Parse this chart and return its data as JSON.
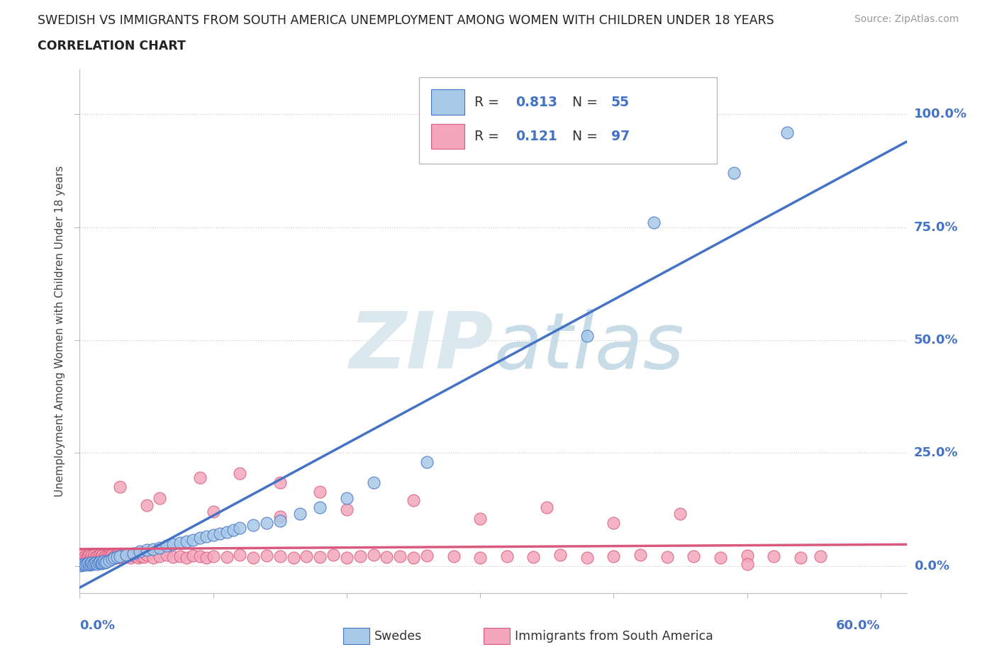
{
  "title_line1": "SWEDISH VS IMMIGRANTS FROM SOUTH AMERICA UNEMPLOYMENT AMONG WOMEN WITH CHILDREN UNDER 18 YEARS",
  "title_line2": "CORRELATION CHART",
  "source_text": "Source: ZipAtlas.com",
  "ylabel": "Unemployment Among Women with Children Under 18 years",
  "xlim": [
    0.0,
    0.62
  ],
  "ylim": [
    -0.06,
    1.1
  ],
  "ytick_vals": [
    0.0,
    0.25,
    0.5,
    0.75,
    1.0
  ],
  "ytick_labels": [
    "0.0%",
    "25.0%",
    "50.0%",
    "75.0%",
    "100.0%"
  ],
  "blue_R": "0.813",
  "blue_N": "55",
  "pink_R": "0.121",
  "pink_N": "97",
  "blue_color": "#a8c8e8",
  "blue_line_color": "#4472c4",
  "pink_color": "#f4a7bc",
  "pink_line_color": "#d9597e",
  "background_color": "#ffffff",
  "watermark_color": "#dce8f0",
  "grid_color": "#cccccc",
  "legend_label_blue": "Swedes",
  "legend_label_pink": "Immigrants from South America",
  "blue_x": [
    0.001,
    0.002,
    0.003,
    0.004,
    0.005,
    0.006,
    0.007,
    0.008,
    0.009,
    0.01,
    0.011,
    0.012,
    0.013,
    0.014,
    0.015,
    0.016,
    0.017,
    0.018,
    0.019,
    0.02,
    0.022,
    0.024,
    0.026,
    0.028,
    0.03,
    0.035,
    0.04,
    0.045,
    0.05,
    0.055,
    0.06,
    0.065,
    0.07,
    0.075,
    0.08,
    0.085,
    0.09,
    0.095,
    0.1,
    0.105,
    0.11,
    0.115,
    0.12,
    0.13,
    0.14,
    0.15,
    0.165,
    0.18,
    0.2,
    0.22,
    0.26,
    0.38,
    0.43,
    0.49,
    0.53
  ],
  "blue_y": [
    0.001,
    0.003,
    0.005,
    0.002,
    0.004,
    0.006,
    0.003,
    0.005,
    0.007,
    0.004,
    0.006,
    0.008,
    0.005,
    0.007,
    0.009,
    0.006,
    0.008,
    0.01,
    0.007,
    0.009,
    0.012,
    0.015,
    0.018,
    0.02,
    0.022,
    0.025,
    0.028,
    0.032,
    0.035,
    0.038,
    0.04,
    0.045,
    0.048,
    0.052,
    0.055,
    0.058,
    0.062,
    0.065,
    0.068,
    0.072,
    0.075,
    0.08,
    0.085,
    0.09,
    0.095,
    0.1,
    0.115,
    0.13,
    0.15,
    0.185,
    0.23,
    0.51,
    0.76,
    0.87,
    0.96
  ],
  "pink_x": [
    0.001,
    0.002,
    0.003,
    0.004,
    0.005,
    0.006,
    0.007,
    0.008,
    0.009,
    0.01,
    0.011,
    0.012,
    0.013,
    0.014,
    0.015,
    0.016,
    0.017,
    0.018,
    0.019,
    0.02,
    0.021,
    0.022,
    0.023,
    0.024,
    0.025,
    0.026,
    0.027,
    0.028,
    0.029,
    0.03,
    0.032,
    0.034,
    0.036,
    0.038,
    0.04,
    0.042,
    0.044,
    0.046,
    0.048,
    0.05,
    0.055,
    0.06,
    0.065,
    0.07,
    0.075,
    0.08,
    0.085,
    0.09,
    0.095,
    0.1,
    0.11,
    0.12,
    0.13,
    0.14,
    0.15,
    0.16,
    0.17,
    0.18,
    0.19,
    0.2,
    0.21,
    0.22,
    0.23,
    0.24,
    0.25,
    0.26,
    0.28,
    0.3,
    0.32,
    0.34,
    0.36,
    0.38,
    0.4,
    0.42,
    0.44,
    0.46,
    0.48,
    0.5,
    0.52,
    0.54,
    0.555,
    0.03,
    0.06,
    0.09,
    0.12,
    0.15,
    0.18,
    0.25,
    0.35,
    0.45,
    0.05,
    0.1,
    0.15,
    0.2,
    0.3,
    0.4,
    0.5
  ],
  "pink_y": [
    0.02,
    0.025,
    0.018,
    0.022,
    0.019,
    0.021,
    0.024,
    0.02,
    0.023,
    0.018,
    0.025,
    0.02,
    0.022,
    0.019,
    0.024,
    0.021,
    0.023,
    0.018,
    0.022,
    0.02,
    0.019,
    0.023,
    0.021,
    0.025,
    0.02,
    0.022,
    0.019,
    0.024,
    0.021,
    0.018,
    0.022,
    0.02,
    0.025,
    0.019,
    0.023,
    0.021,
    0.018,
    0.022,
    0.02,
    0.024,
    0.019,
    0.021,
    0.025,
    0.02,
    0.022,
    0.019,
    0.023,
    0.021,
    0.018,
    0.022,
    0.02,
    0.025,
    0.019,
    0.023,
    0.021,
    0.018,
    0.022,
    0.02,
    0.024,
    0.019,
    0.021,
    0.025,
    0.02,
    0.022,
    0.019,
    0.023,
    0.021,
    0.018,
    0.022,
    0.02,
    0.024,
    0.019,
    0.021,
    0.025,
    0.02,
    0.022,
    0.019,
    0.023,
    0.021,
    0.018,
    0.022,
    0.175,
    0.15,
    0.195,
    0.205,
    0.185,
    0.165,
    0.145,
    0.13,
    0.115,
    0.135,
    0.12,
    0.11,
    0.125,
    0.105,
    0.095,
    0.005
  ]
}
